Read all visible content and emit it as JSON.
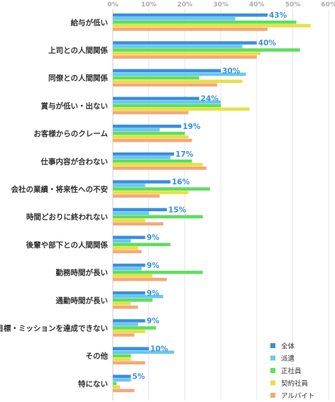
{
  "chart_data": {
    "type": "bar",
    "orientation": "horizontal",
    "categories": [
      "給与が低い",
      "上司との人間関係",
      "同僚との人間関係",
      "賞与が低い・出ない",
      "お客様からのクレーム",
      "仕事内容が合わない",
      "会社の業績・将来性への不安",
      "時間どおりに終われない",
      "後輩や部下との人間関係",
      "勤務時間が長い",
      "通勤時間が長い",
      "目標・ミッションを達成できない",
      "その他",
      "特にない"
    ],
    "series": [
      {
        "name": "全体",
        "color": "#3a8fe0",
        "values": [
          43,
          40,
          30,
          24,
          19,
          17,
          16,
          15,
          9,
          9,
          9,
          9,
          10,
          5
        ]
      },
      {
        "name": "派遣",
        "color": "#68c8f2",
        "values": [
          34,
          36,
          37,
          30,
          13,
          16,
          9,
          10,
          5,
          8,
          14,
          7,
          17,
          5
        ]
      },
      {
        "name": "正社員",
        "color": "#5ddf5d",
        "values": [
          51,
          52,
          24,
          30,
          20,
          22,
          27,
          25,
          16,
          25,
          11,
          12,
          5,
          1
        ]
      },
      {
        "name": "契約社員",
        "color": "#e8e040",
        "values": [
          55,
          41,
          36,
          38,
          21,
          25,
          21,
          9,
          7,
          11,
          5,
          9,
          5,
          2
        ]
      },
      {
        "name": "アルバイト",
        "color": "#f5a77c",
        "values": [
          43,
          40,
          29,
          21,
          22,
          26,
          13,
          14,
          8,
          15,
          7,
          6,
          9,
          6
        ]
      }
    ],
    "data_labels": [
      "43%",
      "40%",
      "30%",
      "24%",
      "19%",
      "17%",
      "16%",
      "15%",
      "9%",
      "9%",
      "9%",
      "9%",
      "10%",
      "5%"
    ],
    "xlim": [
      0,
      60
    ],
    "xticks": [
      "0%",
      "10%",
      "20%",
      "30%",
      "40%",
      "50%",
      "60%"
    ],
    "xlabel": "",
    "ylabel": "",
    "title": "",
    "grid": true,
    "legend_position": "bottom-right"
  }
}
